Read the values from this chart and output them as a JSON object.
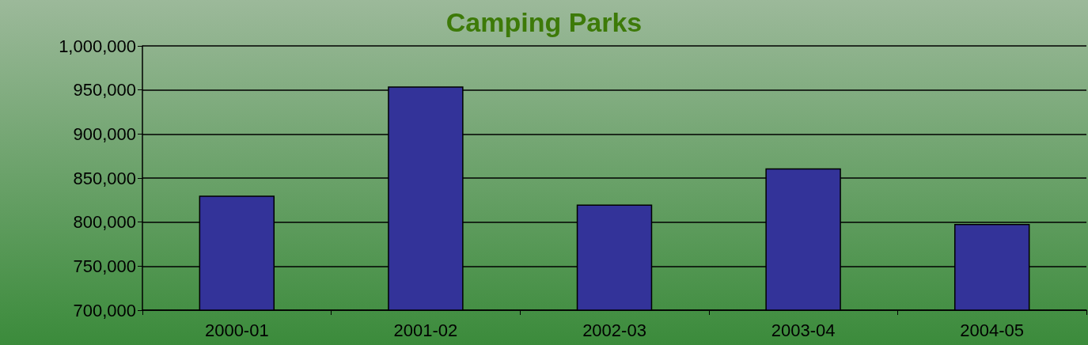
{
  "chart_data": {
    "type": "bar",
    "title": "Camping Parks",
    "categories": [
      "2000-01",
      "2001-02",
      "2002-03",
      "2003-04",
      "2004-05"
    ],
    "values": [
      830000,
      954000,
      820000,
      861000,
      798000
    ],
    "color": "#333399",
    "ylim": [
      700000,
      1000000
    ],
    "yticks": [
      {
        "value": 700000,
        "label": "700,000"
      },
      {
        "value": 750000,
        "label": "750,000"
      },
      {
        "value": 800000,
        "label": "800,000"
      },
      {
        "value": 850000,
        "label": "850,000"
      },
      {
        "value": 900000,
        "label": "900,000"
      },
      {
        "value": 950000,
        "label": "950,000"
      },
      {
        "value": 1000000,
        "label": "1,000,000"
      }
    ],
    "grid": "y"
  }
}
